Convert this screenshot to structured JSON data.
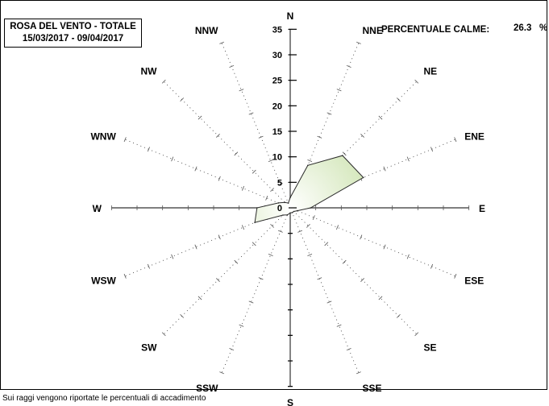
{
  "chart_data": {
    "type": "radar",
    "title_line1": "ROSA DEL VENTO - TOTALE",
    "title_line2": "15/03/2017 - 09/04/2017",
    "calm_label": "PERCENTUALE CALME:",
    "calm_value": "26.3",
    "calm_unit": "%",
    "footnote": "Sui raggi vengono riportate le percentuali di accadimento",
    "directions": [
      "N",
      "NNE",
      "NE",
      "ENE",
      "E",
      "ESE",
      "SE",
      "SSE",
      "S",
      "SSW",
      "SW",
      "WSW",
      "W",
      "WNW",
      "NW",
      "NNW"
    ],
    "values": [
      2.0,
      9.0,
      14.5,
      15.5,
      4.0,
      1.5,
      1.0,
      1.0,
      1.0,
      1.5,
      2.0,
      7.5,
      6.5,
      2.5,
      1.5,
      1.0
    ],
    "r_ticks": [
      0,
      5,
      10,
      15,
      20,
      25,
      30,
      35
    ],
    "r_max": 36,
    "fill_color": "#c8e0a8",
    "fill_color_center": "#ffffff",
    "outline_color": "#2a2a2a",
    "grid": true
  }
}
